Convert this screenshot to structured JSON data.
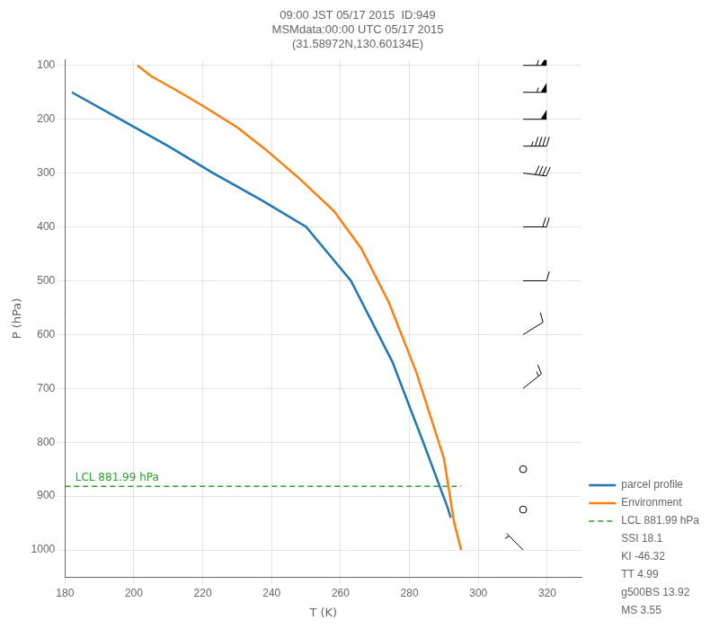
{
  "chart_data": {
    "type": "line",
    "title": "09:00 JST 05/17 2015  ID:949\nMSMdata:00:00 UTC 05/17 2015\n(31.58972N,130.60134E)",
    "x_label": "T (K)",
    "y_label": "P (hPa)",
    "xlim": [
      180,
      330
    ],
    "ylim": [
      1050,
      90
    ],
    "xticks": [
      180,
      200,
      220,
      240,
      260,
      280,
      300,
      320
    ],
    "yticks": [
      100,
      200,
      300,
      400,
      500,
      600,
      700,
      800,
      900,
      1000
    ],
    "grid": true,
    "legend": "right",
    "series": [
      {
        "name": "parcel profile",
        "color": "#1f77b4",
        "line_style": "solid",
        "x": [
          182,
          196,
          210,
          223,
          237,
          250,
          263,
          275,
          284,
          291,
          292
        ],
        "values": [
          150,
          200,
          250,
          300,
          350,
          400,
          500,
          650,
          800,
          920,
          940
        ]
      },
      {
        "name": "Environment",
        "color": "#ff7f0e",
        "line_style": "solid",
        "x": [
          201,
          205,
          212,
          220,
          230,
          238,
          248,
          258,
          266,
          274,
          282,
          290,
          293,
          295
        ],
        "values": [
          100,
          120,
          145,
          175,
          215,
          255,
          310,
          370,
          440,
          540,
          670,
          830,
          950,
          1000
        ]
      },
      {
        "name": "LCL 881.99 hPa",
        "color": "#2ca02c",
        "line_style": "dashed",
        "x": [
          180,
          295
        ],
        "values": [
          881.99,
          881.99
        ]
      }
    ],
    "legend_texts": [
      "SSI 18.1",
      "KI -46.32",
      "TT 4.99",
      "g500BS 13.92",
      "MS 3.55"
    ],
    "annotations": [
      {
        "text": "LCL 881.99 hPa",
        "x": 183,
        "y": 881.99,
        "color": "#2ca02c"
      }
    ],
    "barbs": {
      "x": 313,
      "pressure": [
        100,
        150,
        200,
        250,
        300,
        400,
        500,
        600,
        700,
        850,
        925,
        1000
      ],
      "u": [
        -60,
        -55,
        -50,
        -45,
        -40,
        -20,
        -10,
        -8,
        -10,
        0,
        0,
        5
      ],
      "v": [
        0,
        0,
        0,
        0,
        5,
        0,
        0,
        -5,
        -8,
        0,
        0,
        -5
      ]
    }
  }
}
